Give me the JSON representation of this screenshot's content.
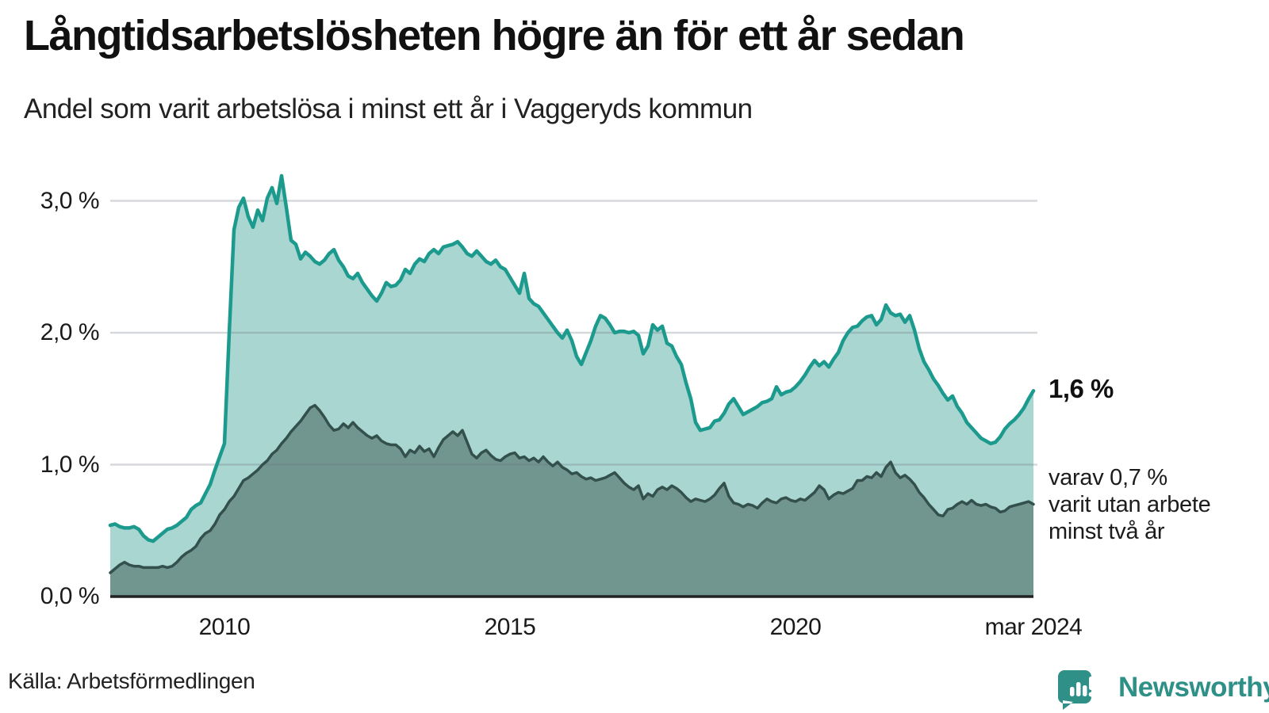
{
  "title": "Långtidsarbetslösheten högre än för ett år sedan",
  "subtitle": "Andel som varit arbetslösa i minst ett år i Vaggeryds kommun",
  "source": "Källa: Arbetsförmedlingen",
  "branding": {
    "name": "Newsworthy",
    "color": "#2f9088",
    "logo": "newsworthy-speech-bubble-barchart-icon"
  },
  "annotations": {
    "latest_value_label": "1,6 %",
    "secondary_label": {
      "line1": "varav 0,7 %",
      "line2": "varit utan arbete",
      "line3": "minst två år"
    }
  },
  "colors": {
    "one_year_line": "#1d9a8e",
    "one_year_fill": "#a9d6d0",
    "two_year_line": "#33504c",
    "two_year_fill": "#71968f",
    "gridline": "#6b7280",
    "axis_baseline": "#222222",
    "text": "#1a1a1a"
  },
  "chart_data": {
    "type": "area",
    "title": "Långtidsarbetslösheten högre än för ett år sedan",
    "subtitle": "Andel som varit arbetslösa i minst ett år i Vaggeryds kommun",
    "unit": "percent",
    "frequency": "monthly",
    "x_start": "2008-01",
    "x_end": "2024-03",
    "ylim": [
      0,
      3.3
    ],
    "grid": true,
    "y_ticks": [
      {
        "label": "3,0 %",
        "value": 3.0
      },
      {
        "label": "2,0 %",
        "value": 2.0
      },
      {
        "label": "1,0 %",
        "value": 1.0
      },
      {
        "label": "0,0 %",
        "value": 0.0
      }
    ],
    "x_ticks": [
      {
        "label": "2010",
        "month_index": 24
      },
      {
        "label": "2015",
        "month_index": 84
      },
      {
        "label": "2020",
        "month_index": 144
      },
      {
        "label": "mar 2024",
        "month_index": 194
      }
    ],
    "series": [
      {
        "id": "unemployed_min_one_year",
        "label_source": "Andel som varit arbetslösa i minst ett år",
        "latest_value": 1.6,
        "values": [
          0.54,
          0.55,
          0.53,
          0.52,
          0.52,
          0.53,
          0.51,
          0.46,
          0.43,
          0.42,
          0.45,
          0.48,
          0.51,
          0.52,
          0.54,
          0.57,
          0.6,
          0.66,
          0.69,
          0.71,
          0.78,
          0.85,
          0.96,
          1.06,
          1.16,
          2.0,
          2.78,
          2.95,
          3.02,
          2.88,
          2.8,
          2.93,
          2.85,
          3.02,
          3.1,
          2.98,
          3.19,
          2.95,
          2.7,
          2.67,
          2.56,
          2.61,
          2.58,
          2.54,
          2.52,
          2.55,
          2.6,
          2.63,
          2.55,
          2.5,
          2.43,
          2.41,
          2.45,
          2.38,
          2.33,
          2.28,
          2.24,
          2.3,
          2.38,
          2.35,
          2.36,
          2.4,
          2.48,
          2.45,
          2.52,
          2.56,
          2.54,
          2.6,
          2.63,
          2.6,
          2.65,
          2.66,
          2.67,
          2.69,
          2.65,
          2.6,
          2.58,
          2.62,
          2.58,
          2.54,
          2.52,
          2.55,
          2.5,
          2.48,
          2.42,
          2.36,
          2.3,
          2.45,
          2.26,
          2.22,
          2.2,
          2.15,
          2.1,
          2.05,
          2.0,
          1.96,
          2.02,
          1.94,
          1.82,
          1.76,
          1.85,
          1.94,
          2.05,
          2.13,
          2.11,
          2.06,
          2.0,
          2.01,
          2.01,
          2.0,
          2.01,
          1.98,
          1.84,
          1.9,
          2.06,
          2.02,
          2.05,
          1.92,
          1.9,
          1.82,
          1.76,
          1.62,
          1.5,
          1.32,
          1.26,
          1.27,
          1.28,
          1.33,
          1.34,
          1.39,
          1.46,
          1.5,
          1.44,
          1.38,
          1.4,
          1.42,
          1.44,
          1.47,
          1.48,
          1.5,
          1.59,
          1.53,
          1.55,
          1.56,
          1.59,
          1.63,
          1.68,
          1.74,
          1.79,
          1.75,
          1.78,
          1.74,
          1.8,
          1.85,
          1.94,
          2.0,
          2.04,
          2.05,
          2.09,
          2.12,
          2.13,
          2.06,
          2.1,
          2.21,
          2.15,
          2.13,
          2.14,
          2.08,
          2.13,
          2.02,
          1.88,
          1.78,
          1.72,
          1.65,
          1.6,
          1.54,
          1.49,
          1.52,
          1.44,
          1.39,
          1.32,
          1.28,
          1.24,
          1.2,
          1.18,
          1.16,
          1.17,
          1.21,
          1.27,
          1.31,
          1.34,
          1.38,
          1.43,
          1.5,
          1.56
        ]
      },
      {
        "id": "unemployed_min_two_years",
        "label_source": "varav varit utan arbete minst två år",
        "latest_value": 0.7,
        "values": [
          0.18,
          0.21,
          0.24,
          0.26,
          0.24,
          0.23,
          0.23,
          0.22,
          0.22,
          0.22,
          0.22,
          0.23,
          0.22,
          0.23,
          0.26,
          0.3,
          0.33,
          0.35,
          0.38,
          0.44,
          0.48,
          0.5,
          0.55,
          0.62,
          0.66,
          0.72,
          0.76,
          0.82,
          0.88,
          0.9,
          0.93,
          0.96,
          1.0,
          1.03,
          1.08,
          1.11,
          1.16,
          1.2,
          1.25,
          1.29,
          1.33,
          1.38,
          1.43,
          1.45,
          1.41,
          1.36,
          1.3,
          1.26,
          1.27,
          1.31,
          1.28,
          1.32,
          1.28,
          1.25,
          1.22,
          1.2,
          1.22,
          1.18,
          1.16,
          1.15,
          1.15,
          1.12,
          1.06,
          1.11,
          1.09,
          1.14,
          1.1,
          1.12,
          1.06,
          1.13,
          1.19,
          1.22,
          1.25,
          1.22,
          1.26,
          1.17,
          1.08,
          1.05,
          1.09,
          1.11,
          1.07,
          1.04,
          1.03,
          1.06,
          1.08,
          1.09,
          1.05,
          1.06,
          1.03,
          1.05,
          1.02,
          1.06,
          1.02,
          0.99,
          1.02,
          0.98,
          0.96,
          0.93,
          0.94,
          0.91,
          0.89,
          0.9,
          0.88,
          0.89,
          0.9,
          0.92,
          0.94,
          0.9,
          0.86,
          0.83,
          0.81,
          0.84,
          0.74,
          0.78,
          0.76,
          0.81,
          0.83,
          0.81,
          0.84,
          0.82,
          0.79,
          0.75,
          0.72,
          0.74,
          0.73,
          0.72,
          0.74,
          0.77,
          0.82,
          0.86,
          0.76,
          0.71,
          0.7,
          0.68,
          0.7,
          0.69,
          0.67,
          0.71,
          0.74,
          0.72,
          0.71,
          0.74,
          0.75,
          0.73,
          0.72,
          0.74,
          0.73,
          0.76,
          0.79,
          0.84,
          0.81,
          0.74,
          0.77,
          0.79,
          0.78,
          0.8,
          0.82,
          0.88,
          0.88,
          0.91,
          0.9,
          0.94,
          0.91,
          0.98,
          1.02,
          0.94,
          0.9,
          0.92,
          0.89,
          0.85,
          0.79,
          0.75,
          0.7,
          0.66,
          0.62,
          0.61,
          0.66,
          0.67,
          0.7,
          0.72,
          0.7,
          0.73,
          0.7,
          0.69,
          0.7,
          0.68,
          0.67,
          0.64,
          0.65,
          0.68,
          0.69,
          0.7,
          0.71,
          0.72,
          0.7
        ]
      }
    ]
  }
}
